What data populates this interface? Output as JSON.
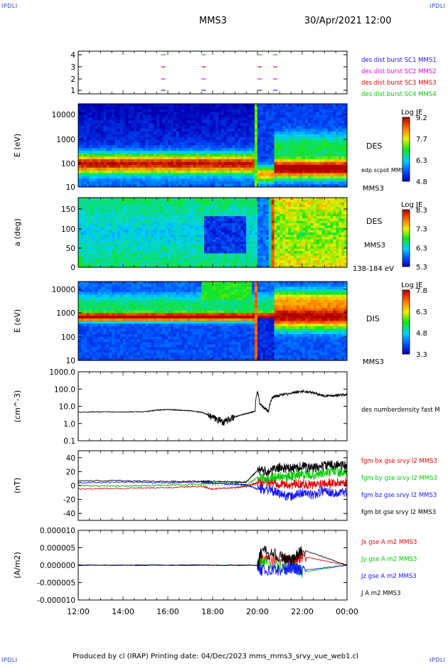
{
  "corners": [
    "IPDLI",
    "IPDLI",
    "IPDLI",
    "IPDLI"
  ],
  "header": {
    "spacecraft": "MMS3",
    "datetime": "30/Apr/2021 12:00"
  },
  "footer": "Produced by cl (IRAP)   Printing date: 04/Dec/2023   mms_mms3_srvy_vue_web1.cl",
  "colors": {
    "blue": "#1414ff",
    "magenta": "#e600e6",
    "red": "#e60000",
    "green": "#00c800",
    "black": "#000000"
  },
  "chart_data": [
    {
      "type": "scatter",
      "panel": "burst-intervals",
      "yticks": [
        "1",
        "2",
        "3",
        "4"
      ],
      "legend": [
        {
          "label": "des dist burst SC1 MMS1",
          "color": "#1414ff"
        },
        {
          "label": "des dist burst SC2 MMS2",
          "color": "#e600e6"
        },
        {
          "label": "des dist burst SC3 MMS3",
          "color": "#e60000"
        },
        {
          "label": "des dist burst SC4 MMS4",
          "color": "#00c800"
        }
      ],
      "intervals_hours": [
        15.8,
        17.6,
        20.1,
        20.8
      ]
    },
    {
      "type": "heatmap",
      "panel": "des-energy-spectrogram",
      "ylabel": "E (eV)",
      "yticks": [
        "10000",
        "1000",
        "100",
        "10"
      ],
      "ylim": [
        10,
        30000
      ],
      "yscale": "log",
      "labels": [
        "DES",
        "edp scpot MMS3",
        "MMS3"
      ],
      "colorbar": {
        "title": "Log JE",
        "ticks": [
          "9.2",
          "7.7",
          "6.3",
          "4.8"
        ],
        "range": [
          4.8,
          9.2
        ]
      }
    },
    {
      "type": "heatmap",
      "panel": "des-pitch-angle",
      "ylabel": "a (deg)",
      "yticks": [
        "150",
        "100",
        "50",
        "0"
      ],
      "ylim": [
        0,
        180
      ],
      "labels": [
        "DES",
        "MMS3",
        "138-184 eV"
      ],
      "colorbar": {
        "title": "Log JE",
        "ticks": [
          "8.3",
          "7.3",
          "6.3",
          "5.3"
        ],
        "range": [
          5.3,
          8.3
        ]
      }
    },
    {
      "type": "heatmap",
      "panel": "dis-energy-spectrogram",
      "ylabel": "E (eV)",
      "yticks": [
        "10000",
        "1000",
        "100",
        "10"
      ],
      "ylim": [
        10,
        30000
      ],
      "yscale": "log",
      "labels": [
        "DIS",
        "MMS3"
      ],
      "colorbar": {
        "title": "Log JE",
        "ticks": [
          "7.8",
          "6.3",
          "4.8",
          "3.3"
        ],
        "range": [
          3.3,
          7.8
        ]
      }
    },
    {
      "type": "line",
      "panel": "density",
      "ylabel": "(cm^-3)",
      "yscale": "log",
      "ylim": [
        0.1,
        1000
      ],
      "yticks": [
        "1000.0",
        "100.0",
        "10.0",
        "1.0",
        "0.1"
      ],
      "series": [
        {
          "name": "des numberdensity fast M",
          "color": "#000000",
          "x": [
            12,
            13,
            14,
            15,
            15.5,
            16,
            16.5,
            17,
            17.5,
            18,
            18.5,
            19,
            19.5,
            19.9,
            20.0,
            20.1,
            20.3,
            20.5,
            20.7,
            20.9,
            21.5,
            22,
            22.5,
            23,
            23.5,
            24
          ],
          "y": [
            4.5,
            4.8,
            4.6,
            4.9,
            6,
            6.5,
            6,
            5.5,
            4.5,
            2.2,
            1.3,
            2.4,
            3.8,
            5,
            70,
            14,
            8,
            5,
            35,
            42,
            55,
            75,
            60,
            40,
            44,
            48
          ]
        }
      ]
    },
    {
      "type": "line",
      "panel": "magnetic-field",
      "ylabel": "(nT)",
      "ylim": [
        -50,
        50
      ],
      "yticks": [
        "40",
        "20",
        "0",
        "-20",
        "-40"
      ],
      "series": [
        {
          "name": "fgm bx gse srvy l2 MMS3",
          "color": "#e60000",
          "x": [
            12,
            14,
            16,
            17.5,
            18,
            19,
            19.5,
            20,
            20.5,
            21,
            21.5,
            22,
            22.5,
            23,
            23.5,
            24
          ],
          "y": [
            -5,
            -4,
            -3,
            -1,
            -5,
            -3,
            -1,
            4,
            5,
            3,
            1,
            3,
            0,
            5,
            4,
            5
          ]
        },
        {
          "name": "fgm by gse srvy l2 MMS3",
          "color": "#00c800",
          "x": [
            12,
            14,
            16,
            17.5,
            18,
            19,
            19.5,
            20,
            20.5,
            21,
            21.5,
            22,
            22.5,
            23,
            23.5,
            24
          ],
          "y": [
            0,
            -1,
            1,
            2,
            4,
            3,
            0,
            12,
            11,
            14,
            13,
            17,
            15,
            18,
            20,
            16
          ]
        },
        {
          "name": "fgm bz gse srvy l2 MMS3",
          "color": "#1414ff",
          "x": [
            12,
            14,
            16,
            17.5,
            18,
            19,
            19.5,
            20,
            20.5,
            21,
            21.5,
            22,
            22.5,
            23,
            23.5,
            24
          ],
          "y": [
            4,
            5,
            4,
            5,
            3,
            2,
            1,
            -5,
            -6,
            -12,
            -16,
            -10,
            -14,
            -6,
            -12,
            -8
          ]
        },
        {
          "name": "fgm bt gse srvy l2 MMS3",
          "color": "#000000",
          "x": [
            12,
            14,
            16,
            17.5,
            18,
            19,
            19.5,
            20,
            20.5,
            21,
            21.5,
            22,
            22.5,
            23,
            23.5,
            24
          ],
          "y": [
            7,
            7,
            6,
            6,
            6,
            5,
            5,
            22,
            20,
            26,
            24,
            28,
            25,
            29,
            30,
            28
          ]
        }
      ]
    },
    {
      "type": "line",
      "panel": "current-density",
      "ylabel": "(A/m2)",
      "ylim": [
        -1e-05,
        1e-05
      ],
      "yticks": [
        "0.000010",
        "0.000005",
        "0.000000",
        "-0.000005",
        "-0.000010"
      ],
      "series": [
        {
          "name": "Jx gse A m2 MMS3",
          "color": "#e60000",
          "x": [
            12,
            20,
            20.2,
            21.2,
            21.6,
            22,
            24
          ],
          "y": [
            0,
            0,
            2e-06,
            1.5e-06,
            1e-06,
            2.5e-06,
            0
          ]
        },
        {
          "name": "Jy gse A m2 MMS3",
          "color": "#00c800",
          "x": [
            12,
            20,
            20.2,
            21.2,
            21.6,
            22,
            24
          ],
          "y": [
            0,
            0,
            8e-07,
            -1e-06,
            -5e-07,
            -2e-06,
            0
          ]
        },
        {
          "name": "Jz gse A m2 MMS3",
          "color": "#1414ff",
          "x": [
            12,
            20,
            20.2,
            21.2,
            21.6,
            22,
            24
          ],
          "y": [
            0,
            0,
            -1.5e-06,
            -1.2e-06,
            -8e-07,
            -1.5e-06,
            0
          ]
        },
        {
          "name": "J A m2 MMS3",
          "color": "#000000",
          "x": [
            12,
            20,
            20.2,
            21.2,
            21.6,
            22,
            24
          ],
          "y": [
            0,
            0,
            4.2e-06,
            2e-06,
            1.5e-06,
            4.5e-06,
            0
          ]
        }
      ]
    }
  ],
  "xaxis": {
    "ticks": [
      "12:00",
      "14:00",
      "16:00",
      "18:00",
      "20:00",
      "22:00",
      "00:00"
    ],
    "xlim_hours": [
      12,
      24
    ]
  }
}
